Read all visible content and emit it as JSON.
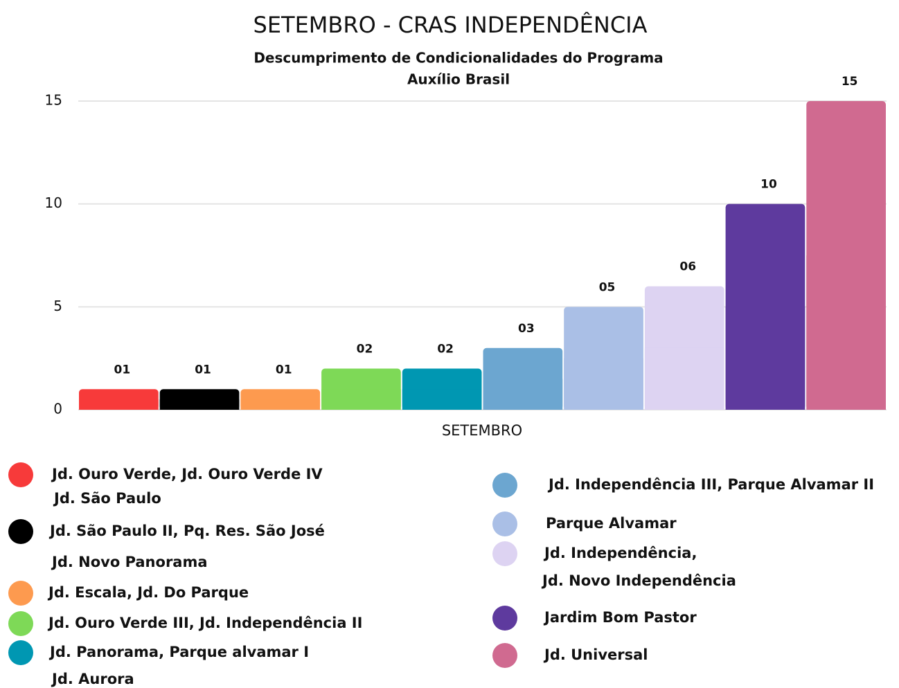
{
  "chart_data": {
    "type": "bar",
    "title": "SETEMBRO - CRAS INDEPENDÊNCIA",
    "subtitle": [
      "Descumprimento de Condicionalidades do Programa",
      "Auxílio Brasil"
    ],
    "categories": [
      "SETEMBRO"
    ],
    "ylim": [
      0,
      15
    ],
    "yticks": [
      0,
      5,
      10,
      15
    ],
    "grid": true,
    "series": [
      {
        "name": [
          "Jd. Ouro Verde, Jd. Ouro Verde IV",
          "Jd. São Paulo"
        ],
        "color": "#f73a3a",
        "values": [
          1
        ],
        "value_labels": [
          "01"
        ]
      },
      {
        "name": [
          "Jd. São Paulo II, Pq. Res. São José",
          "Jd. Novo Panorama"
        ],
        "color": "#000000",
        "values": [
          1
        ],
        "value_labels": [
          "01"
        ]
      },
      {
        "name": [
          "Jd. Escala, Jd. Do Parque"
        ],
        "color": "#fd9a4f",
        "values": [
          1
        ],
        "value_labels": [
          "01"
        ]
      },
      {
        "name": [
          "Jd. Ouro Verde III, Jd. Independência II"
        ],
        "color": "#7ed957",
        "values": [
          2
        ],
        "value_labels": [
          "02"
        ]
      },
      {
        "name": [
          "Jd. Panorama, Parque alvamar I",
          "Jd. Aurora"
        ],
        "color": "#0097b2",
        "values": [
          2
        ],
        "value_labels": [
          "02"
        ]
      },
      {
        "name": [
          "Jd. Independência III, Parque Alvamar II"
        ],
        "color": "#6ca6d0",
        "values": [
          3
        ],
        "value_labels": [
          "03"
        ]
      },
      {
        "name": [
          "Parque Alvamar"
        ],
        "color": "#aabfe6",
        "values": [
          5
        ],
        "value_labels": [
          "05"
        ]
      },
      {
        "name": [
          "Jd. Independência,",
          "Jd. Novo Independência"
        ],
        "color": "#ddd3f2",
        "values": [
          6
        ],
        "value_labels": [
          "06"
        ]
      },
      {
        "name": [
          "Jardim Bom Pastor"
        ],
        "color": "#5e3a9e",
        "values": [
          10
        ],
        "value_labels": [
          "10"
        ]
      },
      {
        "name": [
          "Jd. Universal"
        ],
        "color": "#d06a90",
        "values": [
          15
        ],
        "value_labels": [
          "15"
        ]
      }
    ]
  }
}
